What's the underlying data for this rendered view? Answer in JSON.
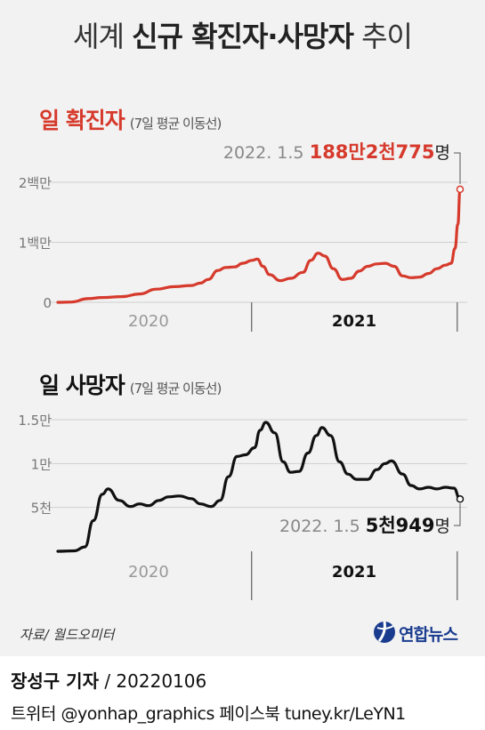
{
  "title": {
    "light1": "세계 ",
    "bold": "신규 확진자·사망자",
    "light2": " 추이"
  },
  "colors": {
    "cases": "#d63a2c",
    "deaths": "#111111",
    "panel_bg": "#f2f2f2",
    "grid": "#cfcfcf"
  },
  "chart_data": [
    {
      "type": "line",
      "title": "일 확진자",
      "subtitle": "(7일 평균 이동선)",
      "ytick_labels": [
        "0",
        "1백만",
        "2백만"
      ],
      "yticks": [
        0,
        1000000,
        2000000
      ],
      "ylim": [
        0,
        2000000
      ],
      "xtick_labels": [
        "2020",
        "2021"
      ],
      "xlim": [
        "2020-01-22",
        "2022-01-05"
      ],
      "annotation": {
        "date_label": "2022. 1.5",
        "value_label": "188만2천775",
        "unit": "명",
        "value": 1882775
      },
      "series": [
        {
          "x": [
            "2020-01-22",
            "2020-02-15",
            "2020-03-15",
            "2020-04-10",
            "2020-05-15",
            "2020-06-15",
            "2020-07-15",
            "2020-08-15",
            "2020-09-15",
            "2020-10-01",
            "2020-10-15",
            "2020-11-01",
            "2020-11-15",
            "2020-12-01",
            "2020-12-15",
            "2021-01-01",
            "2021-01-10",
            "2021-01-20",
            "2021-02-01",
            "2021-02-20",
            "2021-03-10",
            "2021-04-01",
            "2021-04-15",
            "2021-04-28",
            "2021-05-10",
            "2021-05-25",
            "2021-06-10",
            "2021-06-25",
            "2021-07-10",
            "2021-07-25",
            "2021-08-10",
            "2021-08-25",
            "2021-09-10",
            "2021-09-25",
            "2021-10-10",
            "2021-10-25",
            "2021-11-10",
            "2021-11-25",
            "2021-12-10",
            "2021-12-20",
            "2021-12-27",
            "2022-01-01",
            "2022-01-05"
          ],
          "values": [
            0,
            5000,
            60000,
            80000,
            95000,
            140000,
            220000,
            260000,
            280000,
            320000,
            380000,
            530000,
            580000,
            590000,
            650000,
            700000,
            720000,
            600000,
            460000,
            360000,
            400000,
            500000,
            700000,
            820000,
            770000,
            560000,
            380000,
            400000,
            520000,
            600000,
            640000,
            650000,
            600000,
            440000,
            410000,
            420000,
            480000,
            560000,
            620000,
            650000,
            900000,
            1300000,
            1882775
          ]
        }
      ]
    },
    {
      "type": "line",
      "title": "일 사망자",
      "subtitle": "(7일 평균 이동선)",
      "ytick_labels": [
        "5천",
        "1만",
        "1.5만"
      ],
      "yticks": [
        5000,
        10000,
        15000
      ],
      "ylim": [
        0,
        15000
      ],
      "xtick_labels": [
        "2020",
        "2021"
      ],
      "xlim": [
        "2020-01-22",
        "2022-01-05"
      ],
      "annotation": {
        "date_label": "2022. 1.5",
        "value_label": "5천949",
        "unit": "명",
        "value": 5949
      },
      "series": [
        {
          "x": [
            "2020-01-22",
            "2020-02-20",
            "2020-03-10",
            "2020-03-25",
            "2020-04-10",
            "2020-04-20",
            "2020-05-10",
            "2020-05-30",
            "2020-06-15",
            "2020-07-01",
            "2020-07-20",
            "2020-08-05",
            "2020-08-25",
            "2020-09-15",
            "2020-10-01",
            "2020-10-20",
            "2020-11-05",
            "2020-11-20",
            "2020-12-05",
            "2020-12-20",
            "2021-01-05",
            "2021-01-15",
            "2021-01-25",
            "2021-02-10",
            "2021-02-25",
            "2021-03-10",
            "2021-03-25",
            "2021-04-10",
            "2021-04-25",
            "2021-05-05",
            "2021-05-20",
            "2021-06-05",
            "2021-06-20",
            "2021-07-05",
            "2021-07-25",
            "2021-08-10",
            "2021-08-25",
            "2021-09-05",
            "2021-09-25",
            "2021-10-10",
            "2021-10-25",
            "2021-11-10",
            "2021-11-25",
            "2021-12-10",
            "2021-12-25",
            "2022-01-05"
          ],
          "values": [
            0,
            50,
            500,
            3500,
            6500,
            7100,
            5800,
            5100,
            5400,
            5200,
            5800,
            6200,
            6300,
            6000,
            5400,
            5100,
            5800,
            8500,
            10800,
            11000,
            11800,
            13800,
            14700,
            13500,
            10200,
            9000,
            9100,
            11200,
            13200,
            14100,
            13200,
            10200,
            8800,
            8200,
            8200,
            9300,
            10000,
            10300,
            8800,
            7500,
            7100,
            7300,
            7100,
            7300,
            7200,
            5949
          ]
        }
      ]
    }
  ],
  "source": "자료/ 월드오미터",
  "logo": {
    "text": "연합뉴스"
  },
  "footer": {
    "reporter_name": "장성구 기자",
    "reporter_rest": " / 20220106",
    "social": "트위터 @yonhap_graphics  페이스북 tuney.kr/LeYN1"
  }
}
